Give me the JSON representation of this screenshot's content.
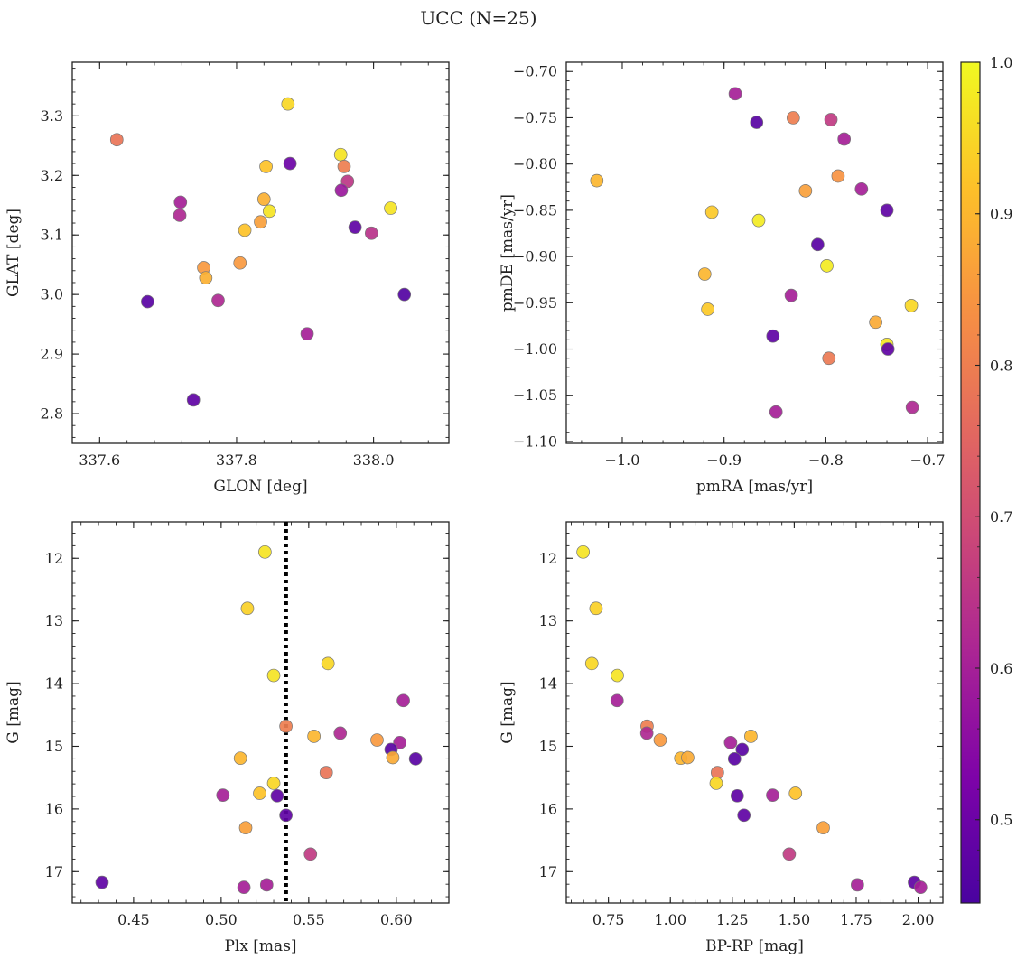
{
  "figure": {
    "title": "UCC (N=25)"
  },
  "colorbar": {
    "range": [
      0.445,
      1.0
    ],
    "ticks": [
      0.5,
      0.6,
      0.7,
      0.8,
      0.9,
      1.0
    ],
    "tick_labels": [
      "0.5",
      "0.6",
      "0.7",
      "0.8",
      "0.9",
      "1.0"
    ],
    "colormap": "plasma"
  },
  "chart_data": [
    {
      "type": "scatter",
      "xlabel": "GLON [deg]",
      "ylabel": "GLAT [deg]",
      "xlim": [
        337.56,
        338.11
      ],
      "ylim": [
        2.75,
        3.39
      ],
      "y_inverted": false,
      "xticks": [
        337.6,
        337.8,
        338.0
      ],
      "xtick_labels": [
        "337.6",
        "337.8",
        "338.0"
      ],
      "yticks": [
        2.8,
        2.9,
        3.0,
        3.1,
        3.2,
        3.3
      ],
      "ytick_labels": [
        "2.8",
        "2.9",
        "3.0",
        "3.1",
        "3.2",
        "3.3"
      ],
      "points": [
        {
          "x": 337.625,
          "y": 3.26,
          "c": 0.78
        },
        {
          "x": 337.875,
          "y": 3.32,
          "c": 0.95
        },
        {
          "x": 337.878,
          "y": 3.22,
          "c": 0.5
        },
        {
          "x": 337.843,
          "y": 3.215,
          "c": 0.92
        },
        {
          "x": 337.952,
          "y": 3.235,
          "c": 0.97
        },
        {
          "x": 337.957,
          "y": 3.215,
          "c": 0.8
        },
        {
          "x": 337.962,
          "y": 3.19,
          "c": 0.65
        },
        {
          "x": 337.953,
          "y": 3.175,
          "c": 0.58
        },
        {
          "x": 337.718,
          "y": 3.155,
          "c": 0.6
        },
        {
          "x": 337.717,
          "y": 3.133,
          "c": 0.62
        },
        {
          "x": 337.84,
          "y": 3.16,
          "c": 0.89
        },
        {
          "x": 337.848,
          "y": 3.14,
          "c": 0.97
        },
        {
          "x": 337.835,
          "y": 3.122,
          "c": 0.86
        },
        {
          "x": 337.812,
          "y": 3.108,
          "c": 0.92
        },
        {
          "x": 337.973,
          "y": 3.113,
          "c": 0.48
        },
        {
          "x": 338.025,
          "y": 3.145,
          "c": 0.97
        },
        {
          "x": 337.997,
          "y": 3.103,
          "c": 0.64
        },
        {
          "x": 337.805,
          "y": 3.053,
          "c": 0.85
        },
        {
          "x": 337.752,
          "y": 3.045,
          "c": 0.85
        },
        {
          "x": 337.755,
          "y": 3.028,
          "c": 0.89
        },
        {
          "x": 337.67,
          "y": 2.988,
          "c": 0.47
        },
        {
          "x": 337.773,
          "y": 2.99,
          "c": 0.62
        },
        {
          "x": 338.045,
          "y": 3.0,
          "c": 0.46
        },
        {
          "x": 337.903,
          "y": 2.934,
          "c": 0.6
        },
        {
          "x": 337.737,
          "y": 2.823,
          "c": 0.48
        }
      ]
    },
    {
      "type": "scatter",
      "xlabel": "pmRA [mas/yr]",
      "ylabel": "pmDE [mas/yr]",
      "xlim": [
        -1.055,
        -0.685
      ],
      "ylim": [
        -1.102,
        -0.69
      ],
      "y_inverted": false,
      "xticks": [
        -1.0,
        -0.9,
        -0.8,
        -0.7
      ],
      "xtick_labels": [
        "−1.0",
        "−0.9",
        "−0.8",
        "−0.7"
      ],
      "yticks": [
        -1.1,
        -1.05,
        -1.0,
        -0.95,
        -0.9,
        -0.85,
        -0.8,
        -0.75,
        -0.7
      ],
      "ytick_labels": [
        "−1.10",
        "−1.05",
        "−1.00",
        "−0.95",
        "−0.90",
        "−0.85",
        "−0.80",
        "−0.75",
        "−0.70"
      ],
      "points": [
        {
          "x": -0.889,
          "y": -0.724,
          "c": 0.6
        },
        {
          "x": -0.868,
          "y": -0.755,
          "c": 0.47
        },
        {
          "x": -0.832,
          "y": -0.75,
          "c": 0.8
        },
        {
          "x": -0.795,
          "y": -0.752,
          "c": 0.66
        },
        {
          "x": -0.782,
          "y": -0.773,
          "c": 0.6
        },
        {
          "x": -1.025,
          "y": -0.818,
          "c": 0.9
        },
        {
          "x": -0.788,
          "y": -0.813,
          "c": 0.84
        },
        {
          "x": -0.82,
          "y": -0.829,
          "c": 0.86
        },
        {
          "x": -0.765,
          "y": -0.827,
          "c": 0.6
        },
        {
          "x": -0.912,
          "y": -0.852,
          "c": 0.93
        },
        {
          "x": -0.866,
          "y": -0.861,
          "c": 0.98
        },
        {
          "x": -0.74,
          "y": -0.85,
          "c": 0.48
        },
        {
          "x": -0.808,
          "y": -0.887,
          "c": 0.47
        },
        {
          "x": -0.799,
          "y": -0.91,
          "c": 0.98
        },
        {
          "x": -0.919,
          "y": -0.919,
          "c": 0.9
        },
        {
          "x": -0.834,
          "y": -0.942,
          "c": 0.6
        },
        {
          "x": -0.716,
          "y": -0.953,
          "c": 0.95
        },
        {
          "x": -0.916,
          "y": -0.957,
          "c": 0.93
        },
        {
          "x": -0.751,
          "y": -0.971,
          "c": 0.88
        },
        {
          "x": -0.852,
          "y": -0.986,
          "c": 0.48
        },
        {
          "x": -0.74,
          "y": -0.995,
          "c": 0.97
        },
        {
          "x": -0.739,
          "y": -1.0,
          "c": 0.48
        },
        {
          "x": -0.797,
          "y": -1.01,
          "c": 0.79
        },
        {
          "x": -0.849,
          "y": -1.068,
          "c": 0.6
        },
        {
          "x": -0.715,
          "y": -1.063,
          "c": 0.62
        }
      ]
    },
    {
      "type": "scatter",
      "xlabel": "Plx [mas]",
      "ylabel": "G [mag]",
      "xlim": [
        0.415,
        0.63
      ],
      "ylim": [
        11.42,
        17.5
      ],
      "y_inverted": true,
      "xticks": [
        0.45,
        0.5,
        0.55,
        0.6
      ],
      "xtick_labels": [
        "0.45",
        "0.50",
        "0.55",
        "0.60"
      ],
      "yticks": [
        12,
        13,
        14,
        15,
        16,
        17
      ],
      "ytick_labels": [
        "12",
        "13",
        "14",
        "15",
        "16",
        "17"
      ],
      "vline": 0.537,
      "points": [
        {
          "x": 0.525,
          "y": 11.9,
          "c": 0.97
        },
        {
          "x": 0.515,
          "y": 12.8,
          "c": 0.94
        },
        {
          "x": 0.561,
          "y": 13.68,
          "c": 0.95
        },
        {
          "x": 0.53,
          "y": 13.87,
          "c": 0.97
        },
        {
          "x": 0.604,
          "y": 14.27,
          "c": 0.6
        },
        {
          "x": 0.537,
          "y": 14.68,
          "c": 0.8
        },
        {
          "x": 0.553,
          "y": 14.84,
          "c": 0.9
        },
        {
          "x": 0.568,
          "y": 14.79,
          "c": 0.62
        },
        {
          "x": 0.589,
          "y": 14.9,
          "c": 0.85
        },
        {
          "x": 0.602,
          "y": 14.94,
          "c": 0.6
        },
        {
          "x": 0.597,
          "y": 15.05,
          "c": 0.47
        },
        {
          "x": 0.598,
          "y": 15.18,
          "c": 0.88
        },
        {
          "x": 0.611,
          "y": 15.2,
          "c": 0.47
        },
        {
          "x": 0.511,
          "y": 15.19,
          "c": 0.9
        },
        {
          "x": 0.56,
          "y": 15.42,
          "c": 0.78
        },
        {
          "x": 0.53,
          "y": 15.59,
          "c": 0.95
        },
        {
          "x": 0.522,
          "y": 15.75,
          "c": 0.92
        },
        {
          "x": 0.501,
          "y": 15.78,
          "c": 0.6
        },
        {
          "x": 0.532,
          "y": 15.79,
          "c": 0.48
        },
        {
          "x": 0.537,
          "y": 16.1,
          "c": 0.48
        },
        {
          "x": 0.514,
          "y": 16.3,
          "c": 0.86
        },
        {
          "x": 0.551,
          "y": 16.72,
          "c": 0.66
        },
        {
          "x": 0.432,
          "y": 17.17,
          "c": 0.48
        },
        {
          "x": 0.513,
          "y": 17.25,
          "c": 0.6
        },
        {
          "x": 0.526,
          "y": 17.21,
          "c": 0.6
        }
      ]
    },
    {
      "type": "scatter",
      "xlabel": "BP-RP [mag]",
      "ylabel": "G [mag]",
      "xlim": [
        0.58,
        2.1
      ],
      "ylim": [
        11.42,
        17.5
      ],
      "y_inverted": true,
      "xticks": [
        0.75,
        1.0,
        1.25,
        1.5,
        1.75,
        2.0
      ],
      "xtick_labels": [
        "0.75",
        "1.00",
        "1.25",
        "1.50",
        "1.75",
        "2.00"
      ],
      "yticks": [
        12,
        13,
        14,
        15,
        16,
        17
      ],
      "ytick_labels": [
        "12",
        "13",
        "14",
        "15",
        "16",
        "17"
      ],
      "points": [
        {
          "x": 0.648,
          "y": 11.9,
          "c": 0.97
        },
        {
          "x": 0.7,
          "y": 12.8,
          "c": 0.94
        },
        {
          "x": 0.683,
          "y": 13.68,
          "c": 0.95
        },
        {
          "x": 0.786,
          "y": 13.87,
          "c": 0.97
        },
        {
          "x": 0.785,
          "y": 14.27,
          "c": 0.6
        },
        {
          "x": 0.906,
          "y": 14.68,
          "c": 0.8
        },
        {
          "x": 0.905,
          "y": 14.79,
          "c": 0.62
        },
        {
          "x": 0.959,
          "y": 14.9,
          "c": 0.85
        },
        {
          "x": 1.243,
          "y": 14.94,
          "c": 0.6
        },
        {
          "x": 1.325,
          "y": 14.84,
          "c": 0.9
        },
        {
          "x": 1.29,
          "y": 15.05,
          "c": 0.47
        },
        {
          "x": 1.042,
          "y": 15.19,
          "c": 0.9
        },
        {
          "x": 1.07,
          "y": 15.18,
          "c": 0.88
        },
        {
          "x": 1.259,
          "y": 15.2,
          "c": 0.47
        },
        {
          "x": 1.19,
          "y": 15.42,
          "c": 0.78
        },
        {
          "x": 1.185,
          "y": 15.59,
          "c": 0.95
        },
        {
          "x": 1.27,
          "y": 15.79,
          "c": 0.48
        },
        {
          "x": 1.413,
          "y": 15.78,
          "c": 0.6
        },
        {
          "x": 1.505,
          "y": 15.75,
          "c": 0.92
        },
        {
          "x": 1.297,
          "y": 16.1,
          "c": 0.48
        },
        {
          "x": 1.617,
          "y": 16.3,
          "c": 0.86
        },
        {
          "x": 1.48,
          "y": 16.72,
          "c": 0.66
        },
        {
          "x": 1.755,
          "y": 17.21,
          "c": 0.6
        },
        {
          "x": 1.985,
          "y": 17.17,
          "c": 0.48
        },
        {
          "x": 2.01,
          "y": 17.25,
          "c": 0.6
        }
      ]
    }
  ]
}
